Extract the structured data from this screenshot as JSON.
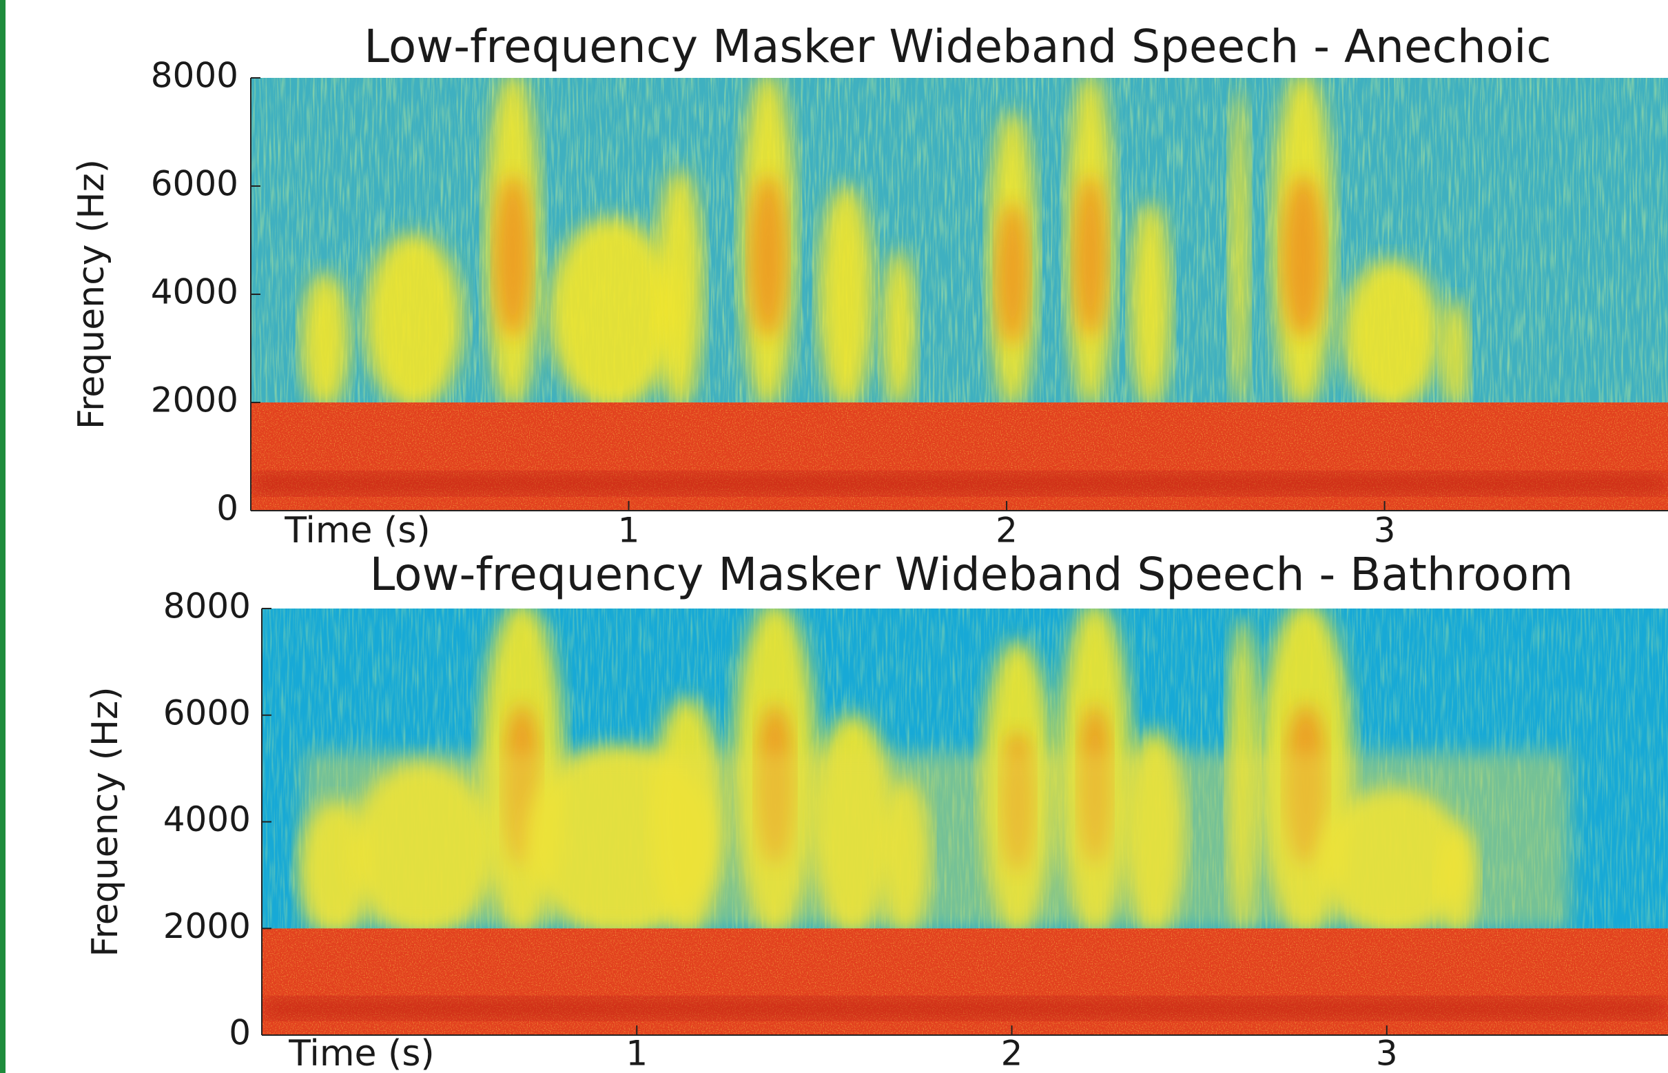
{
  "chart_data": [
    {
      "type": "spectrogram",
      "title": "Low-frequency Masker Wideband Speech - Anechoic",
      "ylabel": "Frequency (Hz)",
      "xlabel": "Time (s)",
      "xlim": [
        0,
        3.75
      ],
      "xticks": [
        1,
        2,
        3
      ],
      "ylim": [
        0,
        8000
      ],
      "yticks": [
        0,
        2000,
        4000,
        6000,
        8000
      ]
    },
    {
      "type": "spectrogram",
      "title": "Low-frequency Masker Wideband Speech - Bathroom",
      "ylabel": "Frequency (Hz)",
      "xlabel": "Time (s)",
      "xlim": [
        0,
        3.75
      ],
      "xticks": [
        1,
        2,
        3
      ],
      "ylim": [
        0,
        8000
      ],
      "yticks": [
        0,
        2000,
        4000,
        6000,
        8000
      ]
    }
  ]
}
